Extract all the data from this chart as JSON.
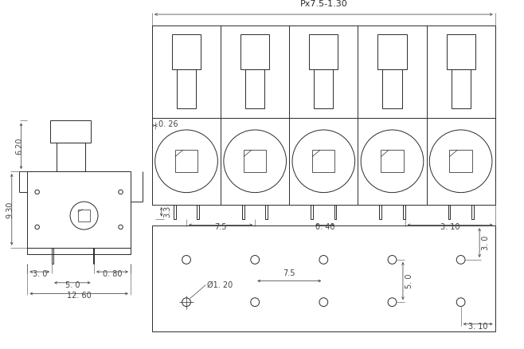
{
  "bg_color": "#ffffff",
  "line_color": "#2a2a2a",
  "dim_color": "#444444",
  "title": "Px7.5-1.30",
  "font_size": 7,
  "title_font_size": 8,
  "dims": {
    "side_height_top": "6.20",
    "side_height_main": "9.30",
    "side_dim_3": "3. 0",
    "side_dim_080": "0. 80",
    "side_dim_50": "5. 0",
    "side_dim_1260": "12. 60",
    "front_dim_026": "0. 26",
    "front_dim_33": "3.3",
    "front_dim_75": "7.5",
    "front_dim_040": "0. 40",
    "front_dim_310": "3. 10",
    "bottom_dim_75": "7.5",
    "bottom_dim_120": "Ø1. 20",
    "bottom_dim_50": "5. 0",
    "bottom_dim_30": "3. 0",
    "bottom_dim_310": "3. 10"
  }
}
